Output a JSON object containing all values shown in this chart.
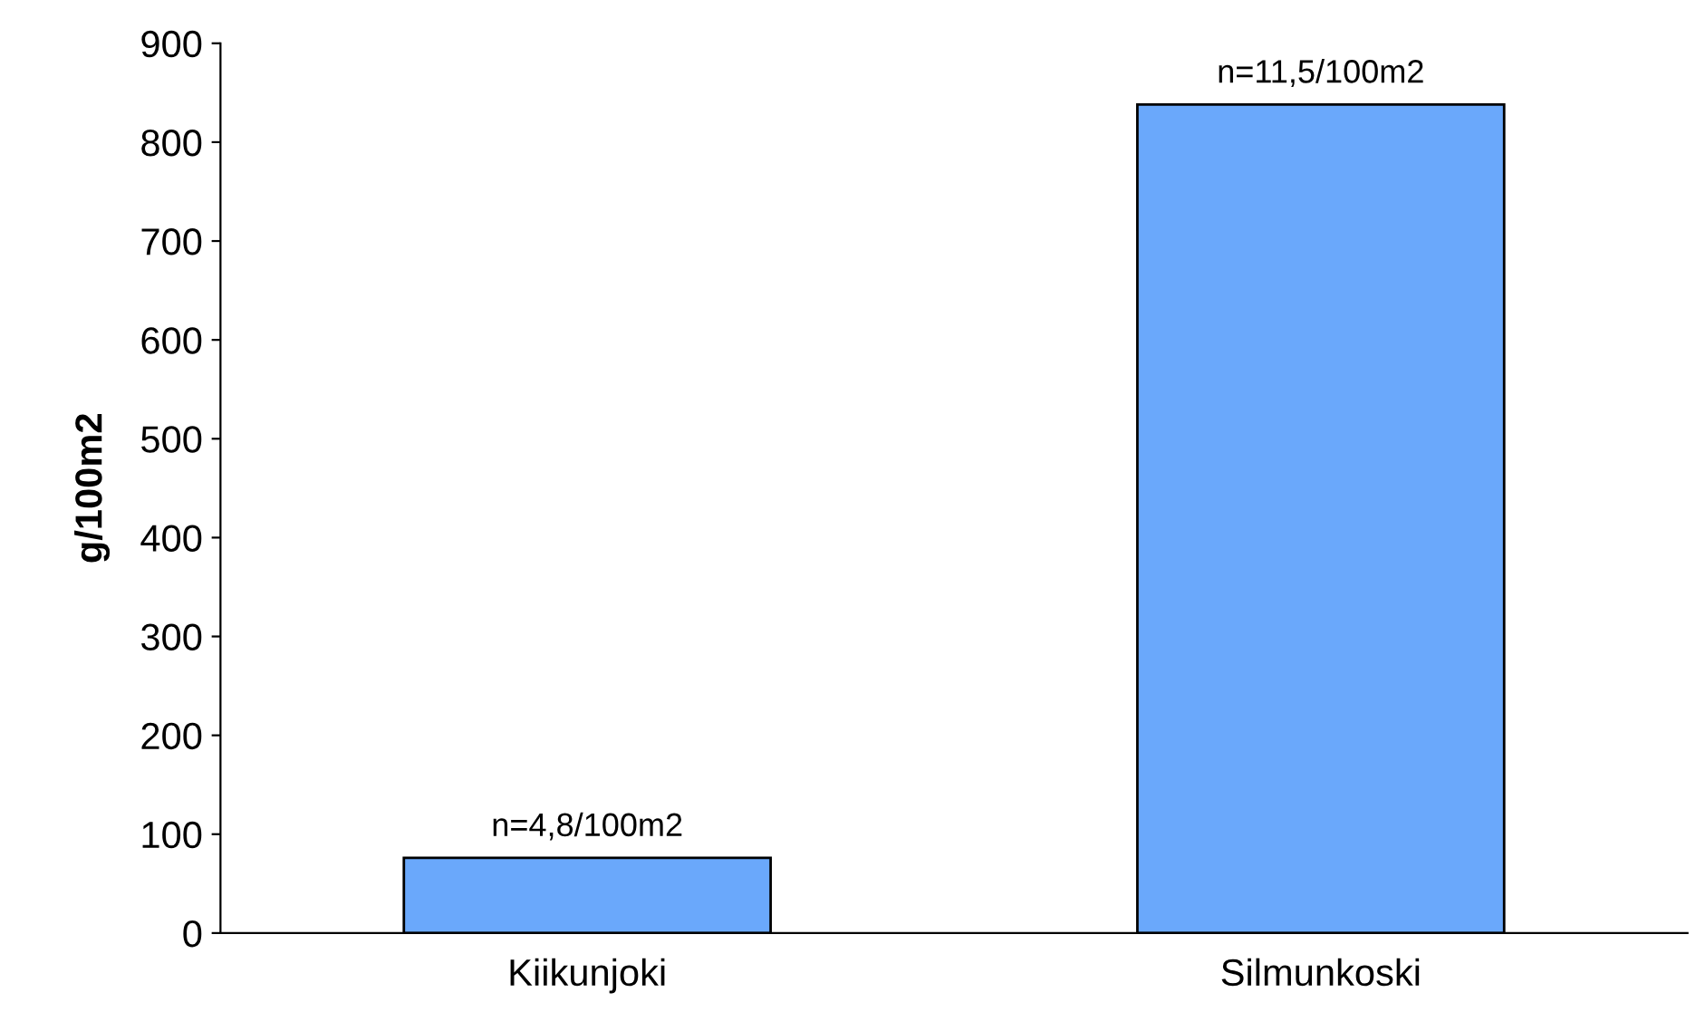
{
  "chart_data": {
    "type": "bar",
    "ylabel": "g/100m2",
    "categories": [
      "Kiikunjoki",
      "Silmunkoski"
    ],
    "values": [
      76,
      838
    ],
    "color": "#6aa8fb",
    "value_labels": [
      "n=4,8/100m2",
      "n=11,5/100m2"
    ],
    "ylim": [
      0,
      900
    ],
    "yticks": [
      0,
      100,
      200,
      300,
      400,
      500,
      600,
      700,
      800,
      900
    ],
    "grid": false,
    "legend": false
  }
}
